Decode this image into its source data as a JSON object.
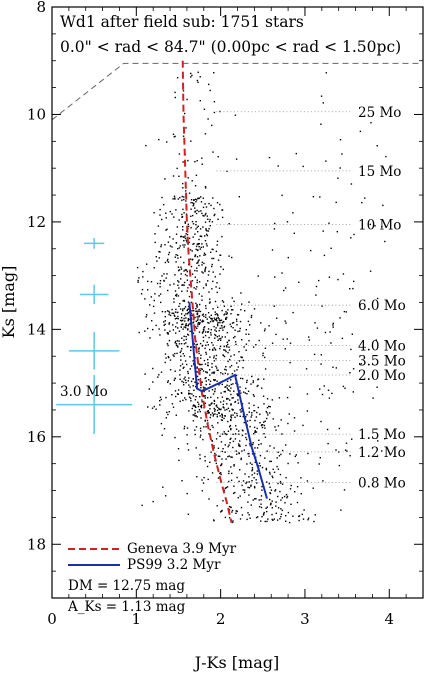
{
  "chart_data": {
    "type": "scatter",
    "title": "Wd1 after field sub: 1751 stars",
    "subtitle": "0.0\" < rad < 84.7\" (0.00pc < rad < 1.50pc)",
    "xlabel": "J-Ks [mag]",
    "ylabel": "Ks [mag]",
    "xlim": [
      0,
      4.4
    ],
    "ylim": [
      19,
      8
    ],
    "y_inverted": true,
    "grid": false,
    "x_ticks": [
      "0",
      "1",
      "2",
      "3",
      "4"
    ],
    "x_tick_values": [
      0,
      1,
      2,
      3,
      4
    ],
    "y_ticks": [
      "8",
      "10",
      "12",
      "14",
      "16",
      "18"
    ],
    "y_tick_values": [
      8,
      10,
      12,
      14,
      16,
      18
    ],
    "star_count": 1751,
    "series": [
      {
        "name": "Geneva 3.9 Myr",
        "color": "#d42020",
        "style": "dashed",
        "x": [
          1.55,
          1.56,
          1.58,
          1.6,
          1.62,
          1.64,
          1.66,
          1.68,
          1.7,
          1.73,
          1.78,
          1.85,
          1.92,
          2.0,
          2.07,
          2.13
        ],
        "y": [
          9.0,
          10.0,
          11.0,
          12.0,
          12.6,
          13.0,
          13.4,
          13.8,
          14.2,
          14.6,
          15.2,
          15.8,
          16.3,
          16.8,
          17.2,
          17.6
        ]
      },
      {
        "name": "PS99 3.2 Myr",
        "color": "#1a2fb0",
        "style": "solid",
        "x": [
          1.63,
          1.68,
          1.72,
          1.78,
          2.05,
          2.17,
          2.28,
          2.37,
          2.45,
          2.55
        ],
        "y": [
          13.5,
          14.4,
          15.1,
          15.15,
          14.95,
          14.85,
          15.6,
          16.2,
          16.6,
          17.15
        ]
      }
    ],
    "mass_labels": [
      {
        "label": "25 Mo",
        "y": 9.95
      },
      {
        "label": "15 Mo",
        "y": 11.05
      },
      {
        "label": "10 Mo",
        "y": 12.05
      },
      {
        "label": "6.0 Mo",
        "y": 13.55
      },
      {
        "label": "4.0 Mo",
        "y": 14.3
      },
      {
        "label": "3.5 Mo",
        "y": 14.58
      },
      {
        "label": "2.0 Mo",
        "y": 14.85
      },
      {
        "label": "1.5 Mo",
        "y": 15.95
      },
      {
        "label": "1.2 Mo",
        "y": 16.28
      },
      {
        "label": "0.8 Mo",
        "y": 16.85
      }
    ],
    "error_bars": [
      {
        "x": 0.5,
        "y": 12.4,
        "xerr": 0.12,
        "yerr": 0.1
      },
      {
        "x": 0.5,
        "y": 13.35,
        "xerr": 0.17,
        "yerr": 0.18
      },
      {
        "x": 0.5,
        "y": 14.4,
        "xerr": 0.3,
        "yerr": 0.35
      },
      {
        "x": 0.5,
        "y": 15.4,
        "xerr": 0.45,
        "yerr": 0.55
      }
    ],
    "error_bar_color": "#5ec8e6",
    "error_label": "3.0 Mo",
    "completeness_limit": {
      "color": "#666666",
      "x": [
        0.0,
        0.85,
        4.4
      ],
      "y": [
        10.1,
        9.05,
        9.05
      ]
    },
    "annotations": {
      "dm": "DM = 12.75 mag",
      "aks": "A_Ks = 1.13 mag"
    }
  }
}
